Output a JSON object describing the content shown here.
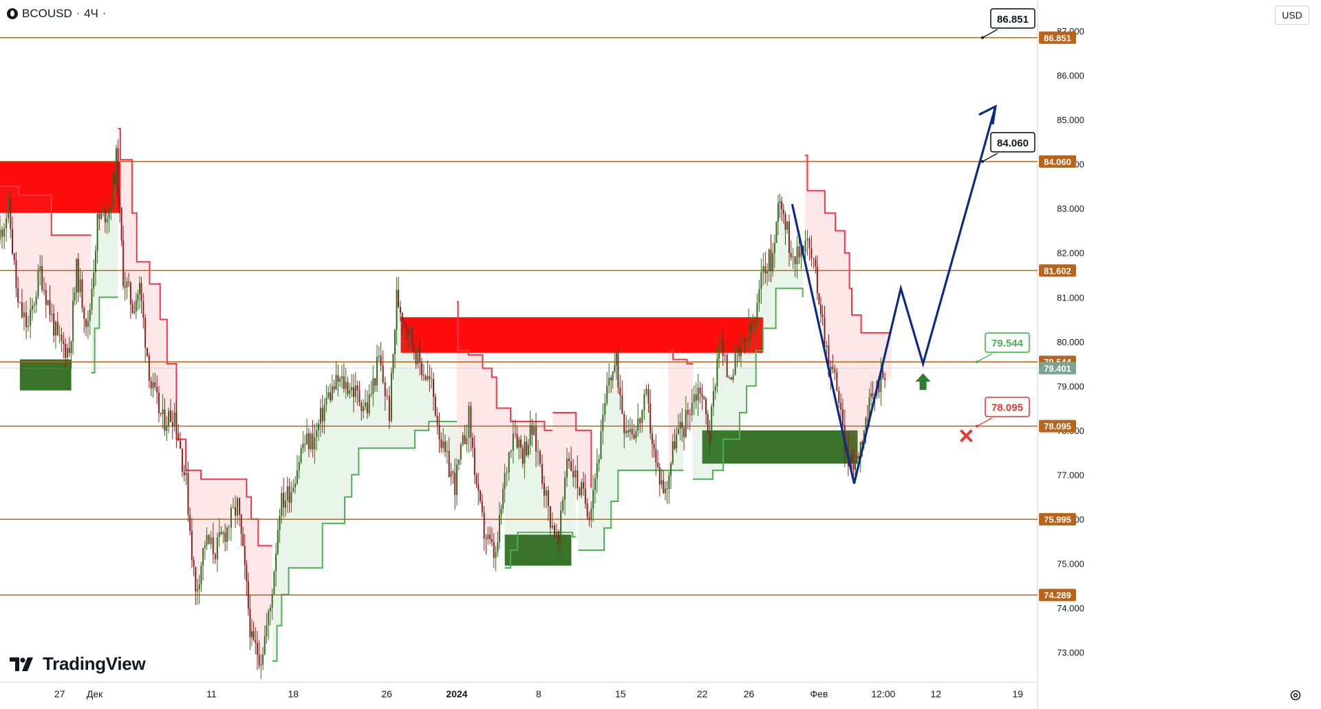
{
  "header": {
    "symbol": "BCOUSD",
    "separator": "·",
    "interval": "4Ч",
    "trailing": "·"
  },
  "currency": "USD",
  "brand": "TradingView",
  "colors": {
    "level": "#b8641a",
    "bull": "#33691e",
    "bear": "#8b1f1f",
    "supertrend_up": "#4caf50",
    "supertrend_down": "#f23645",
    "resistance_zone": "#ff0000",
    "support_zone": "#2e6b1e",
    "forecast": "#0d2a8a",
    "target_arrow": "#2e7d32",
    "stop_mark": "#e53935",
    "last_price_badge": "#7aa595"
  },
  "chart_data": {
    "type": "candlestick",
    "title": "BCOUSD · 4Ч",
    "currency": "USD",
    "y_range": [
      72.2,
      87.7
    ],
    "y_ticks": [
      "73.000",
      "74.000",
      "75.000",
      "76.000",
      "77.000",
      "78.000",
      "79.000",
      "80.000",
      "81.000",
      "82.000",
      "83.000",
      "84.000",
      "85.000",
      "86.000",
      "87.000"
    ],
    "x_ticks": [
      {
        "label": "27",
        "day": -8
      },
      {
        "label": "Дек",
        "day": -5
      },
      {
        "label": "11",
        "day": 5
      },
      {
        "label": "18",
        "day": 12
      },
      {
        "label": "26",
        "day": 20
      },
      {
        "label": "2024",
        "day": 26
      },
      {
        "label": "8",
        "day": 33
      },
      {
        "label": "15",
        "day": 40
      },
      {
        "label": "22",
        "day": 47
      },
      {
        "label": "26",
        "day": 51
      },
      {
        "label": "Фев",
        "day": 57
      },
      {
        "label": "12:00",
        "day": 62.5
      },
      {
        "label": "12",
        "day": 67
      },
      {
        "label": "19",
        "day": 74
      }
    ],
    "x_range_days": [
      -13.1,
      75.7
    ],
    "last_price": "79.401",
    "levels": [
      {
        "price": 86.851,
        "label": "86.851",
        "callout": "86.851",
        "callout_style": "neutral"
      },
      {
        "price": 84.06,
        "label": "84.060",
        "callout": "84.060",
        "callout_style": "neutral"
      },
      {
        "price": 81.602,
        "label": "81.602"
      },
      {
        "price": 79.544,
        "label": "79.544",
        "callout": "79.544",
        "callout_style": "green"
      },
      {
        "price": 78.095,
        "label": "78.095",
        "callout": "78.095",
        "callout_style": "red"
      },
      {
        "price": 75.995,
        "label": "75.995"
      },
      {
        "price": 74.289,
        "label": "74.289"
      }
    ],
    "zones": [
      {
        "kind": "resistance",
        "from_day": -13.1,
        "to_day": -2.8,
        "low": 82.9,
        "high": 84.05
      },
      {
        "kind": "support",
        "from_day": -11.4,
        "to_day": -7.0,
        "low": 78.9,
        "high": 79.6
      },
      {
        "kind": "resistance",
        "from_day": 21.2,
        "to_day": 52.2,
        "low": 79.75,
        "high": 80.55
      },
      {
        "kind": "support",
        "from_day": 30.1,
        "to_day": 35.8,
        "low": 74.95,
        "high": 75.65
      },
      {
        "kind": "support",
        "from_day": 47.0,
        "to_day": 60.3,
        "low": 77.25,
        "high": 78.0
      }
    ],
    "supertrend": [
      {
        "trend": "down",
        "points": [
          [
            -13.1,
            83.5
          ],
          [
            -11.5,
            83.5
          ],
          [
            -11.5,
            83.3
          ],
          [
            -8.7,
            83.3
          ],
          [
            -8.7,
            82.4
          ],
          [
            -5.3,
            82.4
          ]
        ]
      },
      {
        "trend": "up",
        "points": [
          [
            -5.3,
            79.3
          ],
          [
            -5.0,
            79.3
          ],
          [
            -5.0,
            80.3
          ],
          [
            -4.6,
            80.3
          ],
          [
            -4.6,
            81.0
          ],
          [
            -3.0,
            81.0
          ]
        ]
      },
      {
        "trend": "down",
        "points": [
          [
            -3.0,
            84.8
          ],
          [
            -2.8,
            84.8
          ],
          [
            -2.8,
            84.1
          ],
          [
            -1.8,
            84.1
          ],
          [
            -1.8,
            82.9
          ],
          [
            -1.4,
            82.9
          ],
          [
            -1.4,
            81.8
          ],
          [
            -0.3,
            81.8
          ],
          [
            -0.3,
            81.3
          ],
          [
            0.6,
            81.3
          ],
          [
            0.6,
            80.5
          ],
          [
            1.2,
            80.5
          ],
          [
            1.2,
            79.5
          ],
          [
            2.0,
            79.5
          ],
          [
            2.0,
            77.8
          ],
          [
            2.8,
            77.8
          ],
          [
            2.8,
            77.1
          ],
          [
            4.1,
            77.1
          ],
          [
            4.1,
            76.9
          ],
          [
            8.0,
            76.9
          ],
          [
            8.0,
            76.5
          ],
          [
            8.4,
            76.5
          ],
          [
            8.4,
            76.0
          ],
          [
            9.0,
            76.0
          ],
          [
            9.0,
            75.4
          ],
          [
            10.2,
            75.4
          ]
        ]
      },
      {
        "trend": "up",
        "points": [
          [
            10.2,
            72.8
          ],
          [
            10.6,
            72.8
          ],
          [
            10.6,
            73.6
          ],
          [
            11.0,
            73.6
          ],
          [
            11.0,
            74.3
          ],
          [
            11.6,
            74.3
          ],
          [
            11.6,
            74.9
          ],
          [
            14.5,
            74.9
          ],
          [
            14.5,
            75.9
          ],
          [
            16.4,
            75.9
          ],
          [
            16.4,
            76.5
          ],
          [
            17.0,
            76.5
          ],
          [
            17.0,
            77.0
          ],
          [
            17.6,
            77.0
          ],
          [
            17.6,
            77.6
          ],
          [
            22.4,
            77.6
          ],
          [
            22.4,
            78.0
          ],
          [
            23.6,
            78.0
          ],
          [
            23.6,
            78.2
          ],
          [
            26.0,
            78.2
          ]
        ]
      },
      {
        "trend": "down",
        "points": [
          [
            26.0,
            80.9
          ],
          [
            26.1,
            80.9
          ],
          [
            26.1,
            79.8
          ],
          [
            27.0,
            79.8
          ],
          [
            27.0,
            79.7
          ],
          [
            28.2,
            79.7
          ],
          [
            28.2,
            79.4
          ],
          [
            29.0,
            79.4
          ],
          [
            29.0,
            79.2
          ],
          [
            29.4,
            79.2
          ],
          [
            29.4,
            78.5
          ],
          [
            30.6,
            78.5
          ],
          [
            30.6,
            78.2
          ],
          [
            33.5,
            78.2
          ],
          [
            33.5,
            78.0
          ],
          [
            34.2,
            78.0
          ]
        ]
      },
      {
        "trend": "up",
        "points": [
          [
            30.1,
            74.9
          ],
          [
            30.6,
            74.9
          ],
          [
            30.6,
            75.3
          ],
          [
            31.2,
            75.3
          ],
          [
            31.2,
            75.7
          ],
          [
            35.9,
            75.7
          ],
          [
            35.9,
            75.6
          ],
          [
            36.2,
            75.6
          ]
        ]
      },
      {
        "trend": "down",
        "points": [
          [
            34.2,
            78.4
          ],
          [
            36.2,
            78.4
          ],
          [
            36.2,
            78.0
          ],
          [
            37.5,
            78.0
          ],
          [
            37.5,
            76.7
          ]
        ]
      },
      {
        "trend": "up",
        "points": [
          [
            36.4,
            75.3
          ],
          [
            38.6,
            75.3
          ],
          [
            38.6,
            75.8
          ],
          [
            39.2,
            75.8
          ],
          [
            39.2,
            76.4
          ],
          [
            39.8,
            76.4
          ],
          [
            39.8,
            77.1
          ],
          [
            45.4,
            77.1
          ]
        ]
      },
      {
        "trend": "down",
        "points": [
          [
            44.1,
            79.8
          ],
          [
            44.5,
            79.8
          ],
          [
            44.5,
            79.6
          ],
          [
            45.7,
            79.6
          ],
          [
            45.7,
            79.5
          ],
          [
            46.2,
            79.5
          ]
        ]
      },
      {
        "trend": "up",
        "points": [
          [
            46.2,
            76.9
          ],
          [
            47.9,
            76.9
          ],
          [
            47.9,
            77.1
          ],
          [
            48.8,
            77.1
          ],
          [
            48.8,
            77.8
          ],
          [
            50.2,
            77.8
          ],
          [
            50.2,
            78.4
          ],
          [
            50.8,
            78.4
          ],
          [
            50.8,
            79.0
          ],
          [
            51.6,
            79.0
          ],
          [
            51.6,
            79.8
          ],
          [
            52.2,
            79.8
          ],
          [
            52.2,
            80.3
          ],
          [
            53.3,
            80.3
          ],
          [
            53.3,
            81.2
          ],
          [
            55.6,
            81.2
          ],
          [
            55.6,
            81.0
          ]
        ]
      },
      {
        "trend": "down",
        "points": [
          [
            55.8,
            84.2
          ],
          [
            56.0,
            84.2
          ],
          [
            56.0,
            83.4
          ],
          [
            57.5,
            83.4
          ],
          [
            57.5,
            82.9
          ],
          [
            58.4,
            82.9
          ],
          [
            58.4,
            82.5
          ],
          [
            59.2,
            82.5
          ],
          [
            59.2,
            82.0
          ],
          [
            59.6,
            82.0
          ],
          [
            59.6,
            81.2
          ],
          [
            59.8,
            81.2
          ],
          [
            59.8,
            80.6
          ],
          [
            60.6,
            80.6
          ],
          [
            60.6,
            80.2
          ],
          [
            63.2,
            80.2
          ]
        ]
      }
    ],
    "forecast_path": [
      [
        54.7,
        83.1
      ],
      [
        60.0,
        76.8
      ],
      [
        64.0,
        81.2
      ],
      [
        65.9,
        79.5
      ],
      [
        72.1,
        85.3
      ]
    ],
    "candles_note": "BCOUSD 4H candlesticks from late November 2023 to early February 2024; price fell from ~83.5 to ~72.7 (Dec 13), rallied to ~81.2 (Dec 26), dipped to ~74.9 (Jan 3), rose to ~83.8 (Jan 29), dropped to ~77.1 (Feb 6), last 79.401",
    "anchors": [
      [
        -13.1,
        82.3
      ],
      [
        -12.2,
        83.0
      ],
      [
        -11.4,
        80.8
      ],
      [
        -10.5,
        80.3
      ],
      [
        -9.5,
        81.6
      ],
      [
        -8.0,
        80.0
      ],
      [
        -7.0,
        79.8
      ],
      [
        -6.4,
        81.6
      ],
      [
        -5.4,
        80.3
      ],
      [
        -4.6,
        82.7
      ],
      [
        -3.6,
        83.0
      ],
      [
        -3.0,
        84.1
      ],
      [
        -2.4,
        81.5
      ],
      [
        -1.6,
        80.8
      ],
      [
        -1.0,
        81.2
      ],
      [
        0.0,
        79.0
      ],
      [
        1.0,
        78.2
      ],
      [
        2.0,
        78.4
      ],
      [
        3.0,
        76.8
      ],
      [
        3.8,
        74.3
      ],
      [
        4.6,
        75.5
      ],
      [
        5.5,
        75.3
      ],
      [
        6.5,
        75.8
      ],
      [
        7.4,
        76.3
      ],
      [
        8.0,
        74.8
      ],
      [
        8.6,
        73.2
      ],
      [
        9.4,
        72.9
      ],
      [
        10.2,
        74.0
      ],
      [
        11.0,
        76.3
      ],
      [
        12.0,
        76.7
      ],
      [
        13.0,
        77.7
      ],
      [
        14.0,
        77.8
      ],
      [
        15.0,
        78.7
      ],
      [
        16.0,
        79.1
      ],
      [
        17.0,
        79.0
      ],
      [
        18.5,
        78.5
      ],
      [
        19.5,
        79.6
      ],
      [
        20.4,
        78.4
      ],
      [
        21.0,
        81.0
      ],
      [
        22.0,
        80.3
      ],
      [
        23.0,
        79.5
      ],
      [
        24.0,
        79.0
      ],
      [
        25.0,
        77.5
      ],
      [
        26.0,
        76.8
      ],
      [
        27.2,
        78.3
      ],
      [
        28.0,
        76.4
      ],
      [
        28.5,
        75.7
      ],
      [
        29.5,
        75.1
      ],
      [
        30.1,
        76.6
      ],
      [
        31.0,
        78.1
      ],
      [
        31.8,
        77.5
      ],
      [
        32.6,
        78.0
      ],
      [
        33.3,
        77.3
      ],
      [
        34.0,
        76.2
      ],
      [
        34.9,
        75.4
      ],
      [
        35.6,
        77.5
      ],
      [
        36.5,
        76.8
      ],
      [
        37.5,
        76.2
      ],
      [
        38.5,
        77.8
      ],
      [
        39.2,
        79.2
      ],
      [
        39.8,
        79.5
      ],
      [
        40.5,
        78.2
      ],
      [
        41.5,
        78.0
      ],
      [
        42.4,
        78.7
      ],
      [
        43.2,
        77.2
      ],
      [
        44.0,
        76.6
      ],
      [
        44.8,
        77.8
      ],
      [
        45.6,
        78.1
      ],
      [
        46.3,
        78.7
      ],
      [
        47.0,
        79.0
      ],
      [
        47.8,
        77.9
      ],
      [
        48.6,
        80.1
      ],
      [
        49.3,
        79.3
      ],
      [
        50.0,
        79.5
      ],
      [
        50.8,
        80.0
      ],
      [
        51.7,
        80.4
      ],
      [
        52.4,
        81.7
      ],
      [
        53.2,
        81.9
      ],
      [
        53.8,
        83.4
      ],
      [
        54.6,
        82.2
      ],
      [
        55.3,
        81.9
      ],
      [
        56.0,
        82.4
      ],
      [
        56.7,
        81.7
      ],
      [
        57.3,
        80.8
      ],
      [
        58.0,
        79.5
      ],
      [
        58.7,
        79.1
      ],
      [
        59.2,
        77.9
      ],
      [
        59.8,
        77.2
      ],
      [
        60.4,
        77.4
      ],
      [
        61.0,
        78.1
      ],
      [
        61.6,
        78.6
      ],
      [
        62.3,
        79.1
      ],
      [
        62.8,
        79.4
      ]
    ]
  }
}
